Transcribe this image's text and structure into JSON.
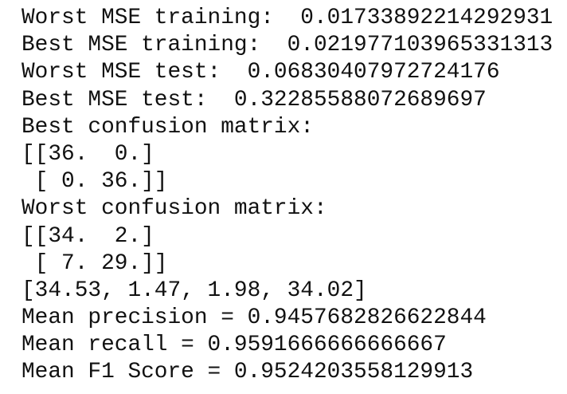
{
  "lines": [
    "Worst MSE training:  0.01733892214292931",
    "Best MSE training:  0.021977103965331313",
    "Worst MSE test:  0.06830407972724176",
    "Best MSE test:  0.32285588072689697",
    "Best confusion matrix:",
    "[[36.  0.]",
    " [ 0. 36.]]",
    "Worst confusion matrix:",
    "[[34.  2.]",
    " [ 7. 29.]]",
    "[34.53, 1.47, 1.98, 34.02]",
    "Mean precision = 0.9457682826622844",
    "Mean recall = 0.9591666666666667",
    "Mean F1 Score = 0.9524203558129913"
  ]
}
